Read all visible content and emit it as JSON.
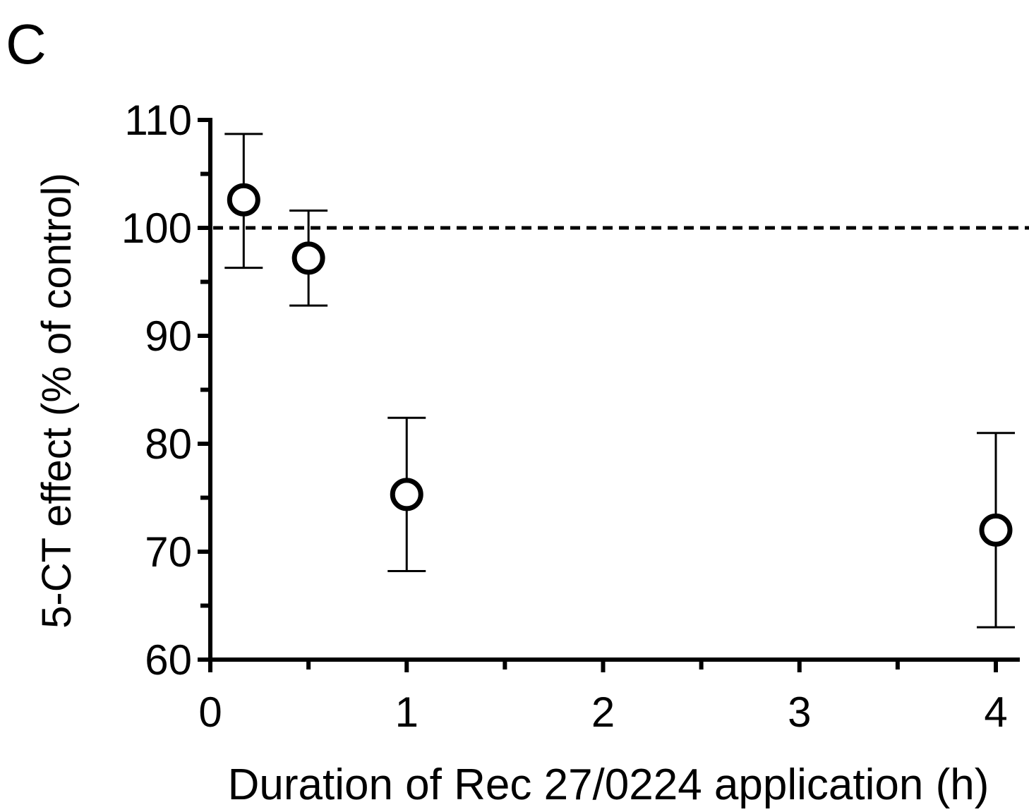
{
  "panel_label": "C",
  "chart_data": {
    "type": "scatter",
    "xlabel": "Duration of Rec 27/0224 application (h)",
    "ylabel": "5-CT effect (% of control)",
    "xlim": [
      0,
      4.1
    ],
    "ylim": [
      60,
      110
    ],
    "x_ticks": [
      0,
      1,
      2,
      3,
      4
    ],
    "x_tick_labels": [
      "0",
      "1",
      "2",
      "3",
      "4"
    ],
    "x_minor_ticks": [
      0.5,
      1.5,
      2.5,
      3.5
    ],
    "y_ticks": [
      60,
      70,
      80,
      90,
      100,
      110
    ],
    "y_tick_labels": [
      "60",
      "70",
      "80",
      "90",
      "100",
      "110"
    ],
    "y_minor_ticks": [
      65,
      75,
      85,
      95,
      105
    ],
    "grid": false,
    "legend": "none",
    "reference_line": {
      "y": 100,
      "style": "dashed"
    },
    "marker": "open-circle",
    "points": [
      {
        "x": 0.17,
        "y": 102.6,
        "err_low": 96.3,
        "err_high": 108.7
      },
      {
        "x": 0.5,
        "y": 97.2,
        "err_low": 92.8,
        "err_high": 101.6
      },
      {
        "x": 1,
        "y": 75.3,
        "err_low": 68.2,
        "err_high": 82.4
      },
      {
        "x": 4,
        "y": 72.0,
        "err_low": 63.0,
        "err_high": 81.0
      }
    ]
  }
}
